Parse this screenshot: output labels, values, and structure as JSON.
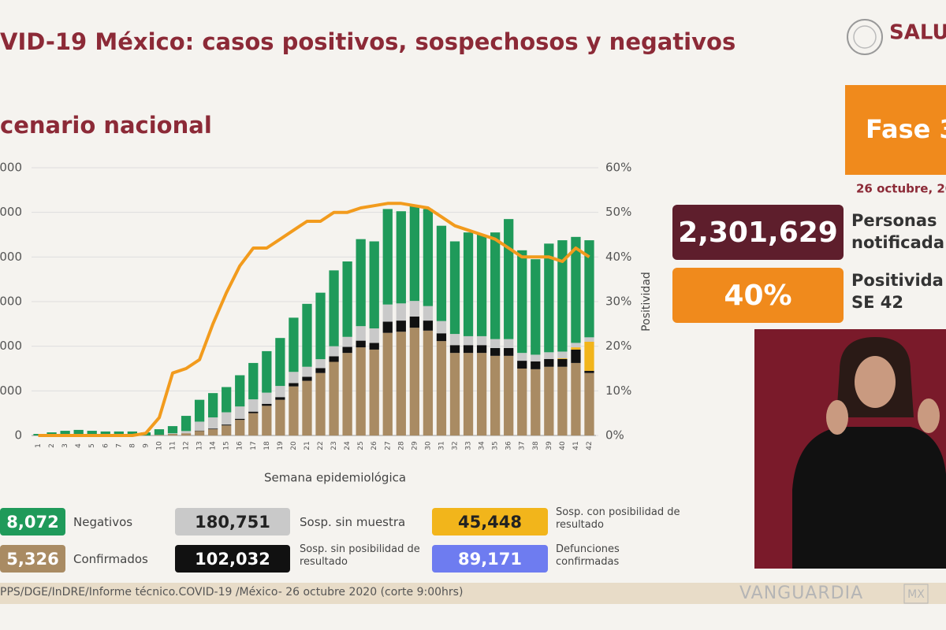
{
  "header": {
    "title": "VID-19 México: casos positivos, sospechosos y negativos",
    "subtitle": "cenario nacional",
    "logo": "SALU"
  },
  "chart_data": {
    "type": "bar",
    "stacked": true,
    "grid": true,
    "categories": [
      "1",
      "2",
      "3",
      "4",
      "5",
      "6",
      "7",
      "8",
      "9",
      "10",
      "11",
      "12",
      "13",
      "14",
      "15",
      "16",
      "17",
      "18",
      "19",
      "20",
      "21",
      "22",
      "23",
      "24",
      "25",
      "26",
      "27",
      "28",
      "29",
      "30",
      "31",
      "32",
      "33",
      "34",
      "35",
      "36",
      "37",
      "38",
      "39",
      "40",
      "41",
      "42"
    ],
    "xlabel": "Semana epidemiológica",
    "y2label": "Positividad",
    "ylim": [
      0,
      120000
    ],
    "yticks": [
      0,
      {
        "value": 20000,
        "label": "000"
      },
      {
        "value": 40000,
        "label": "000"
      },
      {
        "value": 60000,
        "label": "000"
      },
      {
        "value": 80000,
        "label": "000"
      },
      {
        "value": 100000,
        "label": "000"
      },
      {
        "value": 120000,
        "label": "000"
      }
    ],
    "y2lim": [
      0,
      60
    ],
    "y2ticks": [
      {
        "value": 0,
        "label": "0%"
      },
      {
        "value": 10,
        "label": "10%"
      },
      {
        "value": 20,
        "label": "20%"
      },
      {
        "value": 30,
        "label": "30%"
      },
      {
        "value": 40,
        "label": "40%"
      },
      {
        "value": 50,
        "label": "50%"
      },
      {
        "value": 60,
        "label": "60%"
      }
    ],
    "series": [
      {
        "name": "Confirmados",
        "color": "#a98b63",
        "total": "5,326",
        "values": [
          0,
          0,
          0,
          0,
          0,
          0,
          0,
          0,
          0,
          300,
          700,
          1000,
          2000,
          2800,
          4500,
          7000,
          10000,
          13300,
          16000,
          22000,
          24500,
          28000,
          33000,
          37000,
          39500,
          38500,
          46000,
          46500,
          48300,
          47000,
          42300,
          37000,
          37000,
          37000,
          35700,
          35700,
          30000,
          29700,
          30800,
          30800,
          32500,
          28000
        ]
      },
      {
        "name": "Sosp. sin posibilidad de resultado",
        "color": "#111111",
        "total": "102,032",
        "values": [
          0,
          0,
          0,
          0,
          0,
          0,
          0,
          0,
          0,
          0,
          0,
          0,
          200,
          300,
          400,
          500,
          700,
          900,
          1200,
          1500,
          1800,
          2200,
          2500,
          2700,
          3000,
          3000,
          5000,
          5000,
          5000,
          4500,
          3500,
          3500,
          3500,
          3500,
          3500,
          3500,
          3500,
          3500,
          3500,
          3500,
          6000,
          1000
        ]
      },
      {
        "name": "Sosp. con posibilidad de resultado",
        "color": "#f2b51b",
        "total": "45,448",
        "values": [
          0,
          0,
          0,
          0,
          0,
          0,
          0,
          0,
          0,
          0,
          0,
          0,
          0,
          0,
          0,
          0,
          0,
          0,
          0,
          0,
          0,
          0,
          0,
          0,
          0,
          0,
          0,
          0,
          0,
          0,
          0,
          0,
          0,
          0,
          0,
          0,
          0,
          0,
          0,
          300,
          1000,
          13000
        ]
      },
      {
        "name": "Sosp. sin muestra",
        "color": "#c9c9c9",
        "total": "180,751",
        "values": [
          0,
          0,
          0,
          0,
          0,
          0,
          0,
          0,
          0,
          0,
          300,
          1000,
          4000,
          5000,
          5500,
          5500,
          5500,
          5000,
          5000,
          5000,
          4500,
          4000,
          4500,
          4500,
          6500,
          6500,
          7700,
          7700,
          7000,
          6500,
          5500,
          5000,
          4000,
          4000,
          4000,
          4000,
          3500,
          3000,
          3000,
          3000,
          2000,
          2000
        ]
      },
      {
        "name": "Negativos",
        "color": "#1f9a5a",
        "total": "8,072",
        "values": [
          700,
          1400,
          2100,
          2500,
          2100,
          1800,
          1800,
          1800,
          1400,
          2500,
          3200,
          6800,
          9800,
          10900,
          11300,
          14000,
          16300,
          18600,
          21500,
          24300,
          28200,
          29800,
          34000,
          33800,
          39000,
          39000,
          42800,
          41300,
          42700,
          43500,
          42700,
          41500,
          46500,
          45500,
          47800,
          53800,
          46000,
          42800,
          48700,
          49900,
          47500,
          43500
        ]
      }
    ],
    "line": {
      "axis": "y2",
      "color": "#f29b1d",
      "values": [
        0,
        0,
        0,
        0,
        0,
        0,
        0,
        0,
        0.5,
        4,
        14,
        15,
        17,
        25,
        32,
        38,
        42,
        42,
        44,
        46,
        48,
        48,
        50,
        50,
        51,
        51.5,
        52,
        52,
        51.5,
        51,
        49,
        47,
        46,
        45,
        44,
        42,
        40,
        40,
        40,
        39,
        42,
        40
      ]
    }
  },
  "legend": {
    "extra": {
      "name": "Defunciones confirmadas",
      "total": "89,171",
      "color": "#6e7cf0"
    }
  },
  "panel": {
    "phase": "Fase 3",
    "date": "26 octubre, 20",
    "notified": {
      "value": "2,301,629",
      "label_lines": [
        "Personas",
        "notificada"
      ]
    },
    "positivity": {
      "value": "40%",
      "label_lines": [
        "Positivida",
        "SE 42"
      ]
    }
  },
  "footer": {
    "source": "PPS/DGE/InDRE/Informe técnico.COVID-19 /México- 26 octubre 2020 (corte 9:00hrs)",
    "watermark": "VANGUARDIA",
    "watermark_suffix": "MX"
  }
}
